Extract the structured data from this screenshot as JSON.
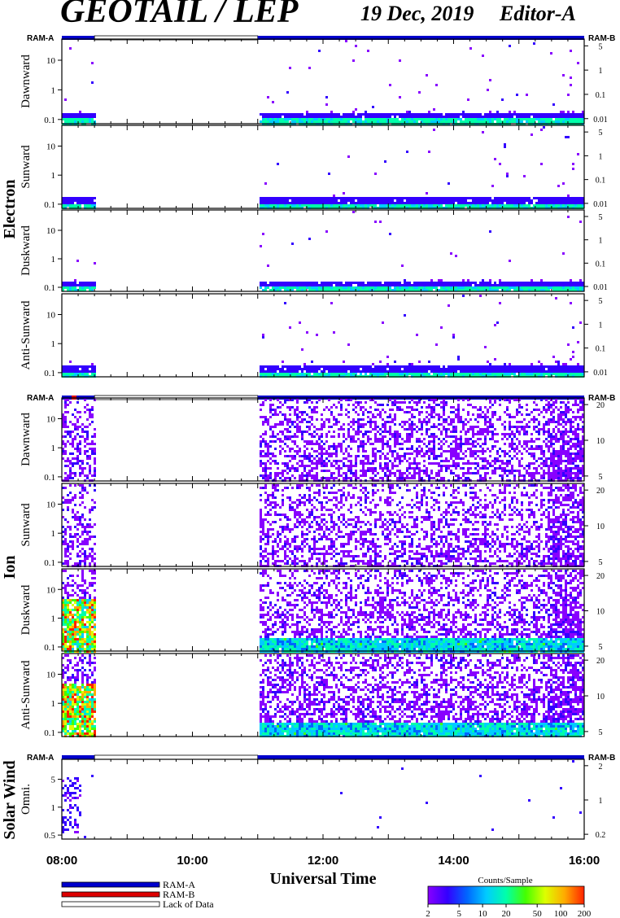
{
  "header": {
    "title": "GEOTAIL / LEP",
    "date": "19 Dec, 2019",
    "editor": "Editor-A"
  },
  "colors": {
    "ram_a": "#0000cc",
    "ram_b": "#dd0000",
    "lack_of_data": "#ffffff",
    "axis": "#000000"
  },
  "chart_data": {
    "type": "heatmap",
    "xlabel": "Universal Time",
    "x_ticks": [
      "08:00",
      "10:00",
      "12:00",
      "14:00",
      "16:00"
    ],
    "x_range_hours": [
      8,
      16
    ],
    "data_gap_hours": [
      8.5,
      11.0
    ],
    "mode_bar_labels": {
      "left": "RAM-A",
      "right": "RAM-B"
    },
    "groups": [
      {
        "name": "Electron",
        "panels": [
          {
            "name": "Dawnward",
            "left_ticks": [
              "10",
              "1",
              "0.1"
            ],
            "right_ticks": [
              "5",
              "1",
              "0.1",
              "0.01"
            ]
          },
          {
            "name": "Sunward",
            "left_ticks": [
              "10",
              "1",
              "0.1"
            ],
            "right_ticks": [
              "5",
              "1",
              "0.1",
              "0.01"
            ]
          },
          {
            "name": "Duskward",
            "left_ticks": [
              "10",
              "1",
              "0.1"
            ],
            "right_ticks": [
              "5",
              "1",
              "0.1",
              "0.01"
            ]
          },
          {
            "name": "Anti-Sunward",
            "left_ticks": [
              "10",
              "1",
              "0.1"
            ],
            "right_ticks": [
              "5",
              "1",
              "0.1",
              "0.01"
            ]
          }
        ]
      },
      {
        "name": "Ion",
        "panels": [
          {
            "name": "Dawnward",
            "left_ticks": [
              "10",
              "1",
              "0.1"
            ],
            "right_ticks": [
              "20",
              "10",
              "5"
            ]
          },
          {
            "name": "Sunward",
            "left_ticks": [
              "10",
              "1",
              "0.1"
            ],
            "right_ticks": [
              "20",
              "10",
              "5"
            ]
          },
          {
            "name": "Duskward",
            "left_ticks": [
              "10",
              "1",
              "0.1"
            ],
            "right_ticks": [
              "20",
              "10",
              "5"
            ]
          },
          {
            "name": "Anti-Sunward",
            "left_ticks": [
              "10",
              "1",
              "0.1"
            ],
            "right_ticks": [
              "20",
              "10",
              "5"
            ]
          }
        ]
      },
      {
        "name": "Solar Wind",
        "panels": [
          {
            "name": "Omni.",
            "left_ticks": [
              "5",
              "1",
              "0.5"
            ],
            "right_ticks": [
              "2",
              "1",
              "0.2"
            ]
          }
        ]
      }
    ],
    "legend": [
      {
        "label": "RAM-A",
        "color": "#0000cc"
      },
      {
        "label": "RAM-B",
        "color": "#dd0000"
      },
      {
        "label": "Lack of Data",
        "color": "#ffffff"
      }
    ],
    "colorbar": {
      "title": "Counts/Sample",
      "ticks": [
        "2",
        "5",
        "10",
        "20",
        "50",
        "100",
        "200"
      ],
      "range": [
        2,
        200
      ],
      "scale": "log"
    }
  }
}
